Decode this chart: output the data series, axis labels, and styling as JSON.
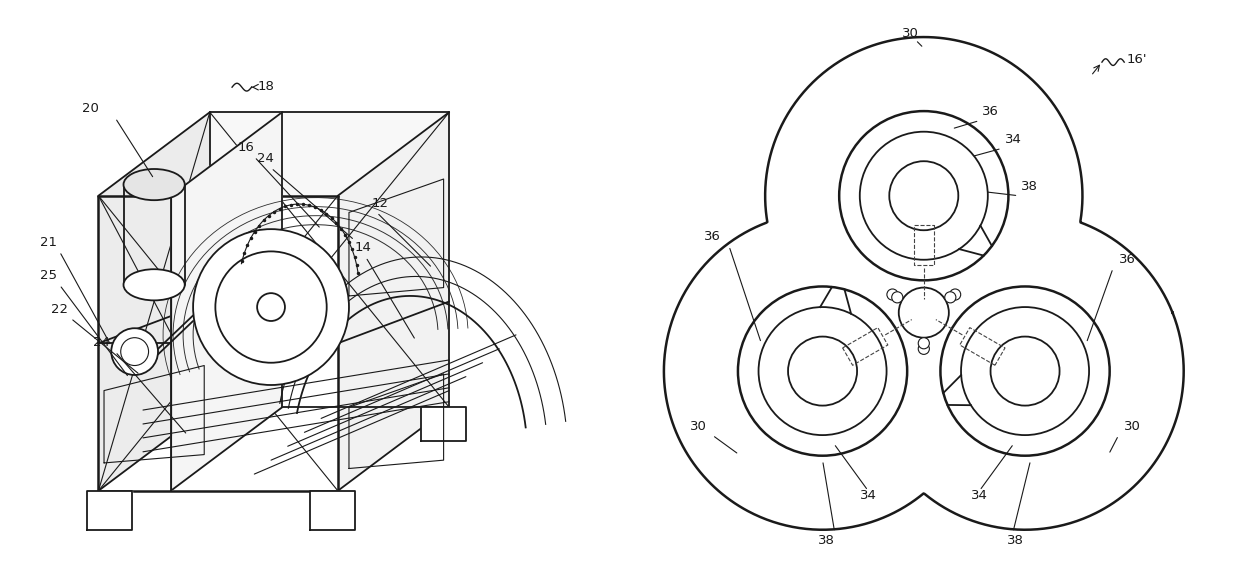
{
  "bg_color": "#ffffff",
  "line_color": "#1a1a1a",
  "fig_width": 12.4,
  "fig_height": 5.86,
  "dpi": 100
}
